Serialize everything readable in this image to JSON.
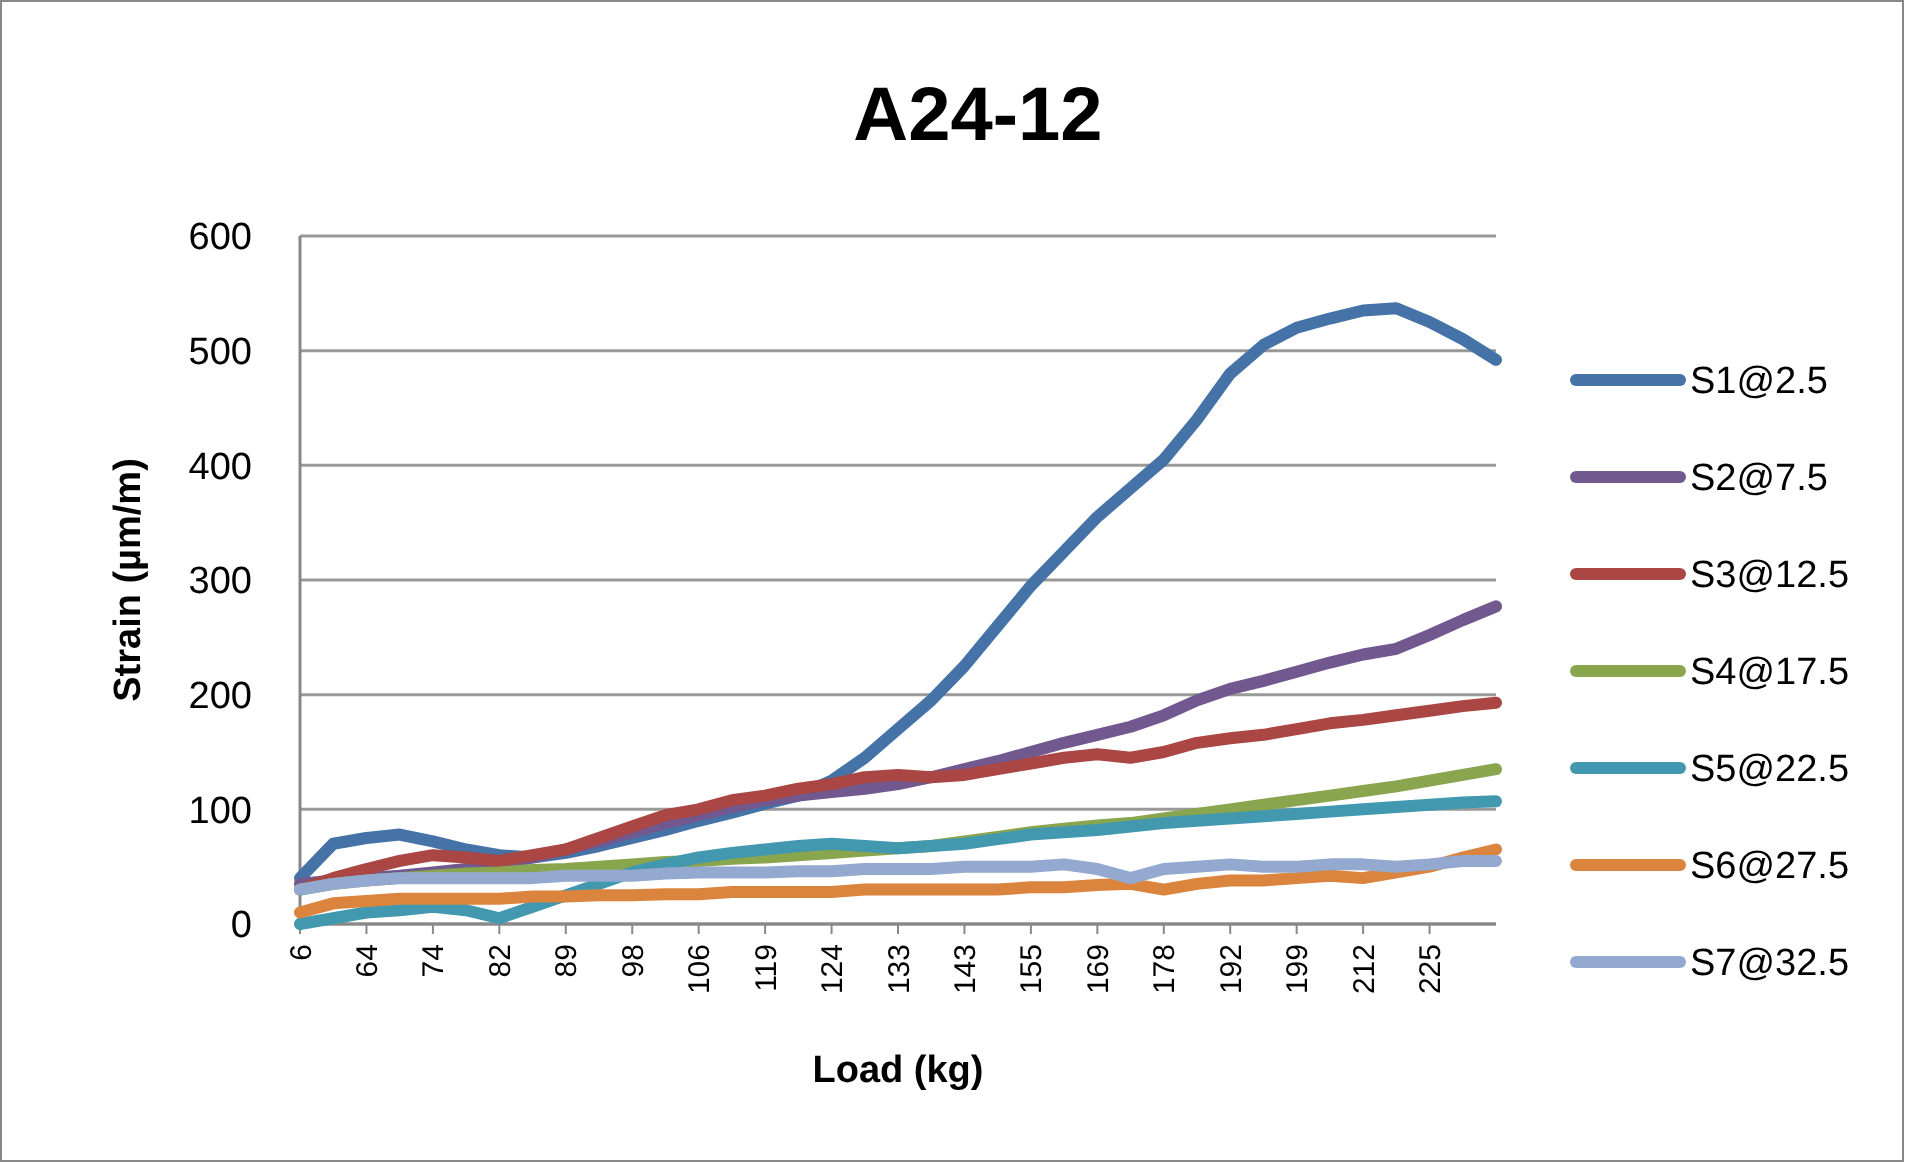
{
  "chart_data": {
    "type": "line",
    "title": "A24-12",
    "xlabel": "Load (kg)",
    "ylabel": "Strain (µm/m)",
    "categories": [
      "6",
      null,
      "64",
      null,
      "74",
      null,
      "82",
      null,
      "89",
      null,
      "98",
      null,
      "106",
      null,
      "119",
      null,
      "124",
      null,
      "133",
      null,
      "143",
      null,
      "155",
      null,
      "169",
      null,
      "178",
      null,
      "192",
      null,
      "199",
      null,
      "212",
      null,
      "225",
      null,
      null
    ],
    "series": [
      {
        "name": "S1@2.5",
        "color": "#4572a7",
        "values": [
          40,
          70,
          75,
          78,
          72,
          65,
          60,
          58,
          62,
          68,
          75,
          82,
          90,
          97,
          105,
          112,
          125,
          145,
          170,
          195,
          225,
          260,
          295,
          325,
          355,
          380,
          405,
          440,
          480,
          505,
          520,
          528,
          535,
          537,
          525,
          510,
          492
        ]
      },
      {
        "name": "S2@7.5",
        "color": "#71588f",
        "values": [
          35,
          38,
          40,
          42,
          45,
          48,
          52,
          58,
          65,
          72,
          80,
          88,
          95,
          102,
          108,
          112,
          115,
          118,
          122,
          128,
          135,
          142,
          150,
          158,
          165,
          172,
          182,
          195,
          205,
          212,
          220,
          228,
          235,
          240,
          252,
          265,
          277
        ]
      },
      {
        "name": "S3@12.5",
        "color": "#aa4643",
        "values": [
          30,
          40,
          48,
          55,
          60,
          58,
          55,
          60,
          65,
          75,
          85,
          95,
          100,
          108,
          112,
          118,
          122,
          128,
          130,
          128,
          130,
          135,
          140,
          145,
          148,
          145,
          150,
          158,
          162,
          165,
          170,
          175,
          178,
          182,
          186,
          190,
          193
        ]
      },
      {
        "name": "S4@17.5",
        "color": "#89a54e",
        "values": [
          30,
          35,
          38,
          40,
          42,
          44,
          45,
          47,
          48,
          50,
          52,
          54,
          55,
          57,
          58,
          60,
          62,
          64,
          66,
          68,
          72,
          76,
          80,
          83,
          86,
          88,
          92,
          96,
          100,
          104,
          108,
          112,
          116,
          120,
          125,
          130,
          135
        ]
      },
      {
        "name": "S5@22.5",
        "color": "#4198af",
        "values": [
          0,
          5,
          10,
          12,
          15,
          12,
          5,
          15,
          25,
          35,
          45,
          52,
          58,
          62,
          65,
          68,
          70,
          68,
          66,
          68,
          70,
          74,
          78,
          80,
          82,
          85,
          88,
          90,
          92,
          94,
          96,
          98,
          100,
          102,
          104,
          106,
          107
        ]
      },
      {
        "name": "S6@27.5",
        "color": "#db843d",
        "values": [
          10,
          18,
          20,
          22,
          22,
          22,
          22,
          24,
          24,
          25,
          25,
          26,
          26,
          28,
          28,
          28,
          28,
          30,
          30,
          30,
          30,
          30,
          32,
          32,
          34,
          35,
          30,
          35,
          38,
          38,
          40,
          42,
          40,
          45,
          50,
          58,
          65
        ]
      },
      {
        "name": "S7@32.5",
        "color": "#93a9cf",
        "values": [
          30,
          35,
          38,
          40,
          40,
          40,
          40,
          40,
          42,
          42,
          42,
          44,
          45,
          45,
          45,
          46,
          46,
          48,
          48,
          48,
          50,
          50,
          50,
          52,
          48,
          40,
          48,
          50,
          52,
          50,
          50,
          52,
          52,
          50,
          52,
          55,
          55
        ]
      }
    ],
    "ylim": [
      0,
      600
    ],
    "yticks": [
      0,
      100,
      200,
      300,
      400,
      500,
      600
    ],
    "grid": "y",
    "legend": "right",
    "marker": "none",
    "line_style": "solid"
  }
}
